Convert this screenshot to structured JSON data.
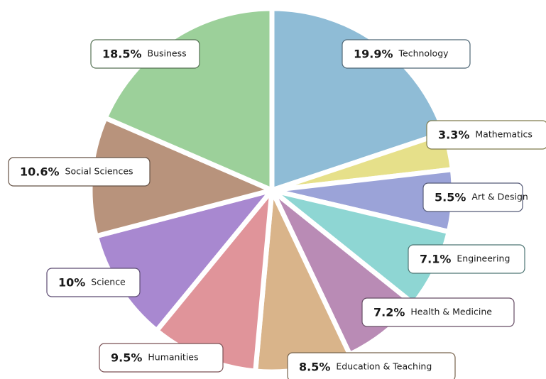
{
  "chart_data": {
    "type": "pie",
    "categories": [
      "Technology",
      "Mathematics",
      "Art & Design",
      "Engineering",
      "Health & Medicine",
      "Education & Teaching",
      "Humanities",
      "Science",
      "Social Sciences",
      "Business"
    ],
    "values": [
      19.9,
      3.3,
      5.5,
      7.1,
      7.2,
      8.5,
      9.5,
      10,
      10.6,
      18.5
    ],
    "value_labels": [
      "19.9%",
      "3.3%",
      "5.5%",
      "7.1%",
      "7.2%",
      "8.5%",
      "9.5%",
      "10%",
      "10.6%",
      "18.5%"
    ],
    "colors": [
      "#8fbcd6",
      "#e6e08a",
      "#9ba3d8",
      "#8ed6d3",
      "#b98bb5",
      "#d9b48a",
      "#e0949a",
      "#a888d0",
      "#b8937c",
      "#9cd09a"
    ]
  }
}
